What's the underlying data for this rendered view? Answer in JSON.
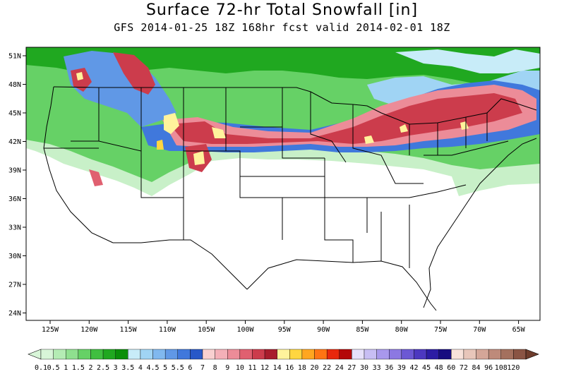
{
  "title": "Surface 72-hr Total Snowfall [in]",
  "subtitle": "GFS 2014-01-25 18Z 168hr fcst valid 2014-02-01 18Z",
  "lat_labels": [
    "51N",
    "48N",
    "45N",
    "42N",
    "39N",
    "36N",
    "33N",
    "30N",
    "27N",
    "24N"
  ],
  "lon_labels": [
    "125W",
    "120W",
    "115W",
    "110W",
    "105W",
    "100W",
    "95W",
    "90W",
    "85W",
    "80W",
    "75W",
    "70W",
    "65W"
  ],
  "colorbar": {
    "labels": [
      "0.1",
      "0.5",
      "1",
      "1.5",
      "2",
      "2.5",
      "3",
      "3.5",
      "4",
      "4.5",
      "5",
      "5.5",
      "6",
      "7",
      "8",
      "9",
      "10",
      "11",
      "12",
      "14",
      "16",
      "18",
      "20",
      "22",
      "24",
      "27",
      "30",
      "33",
      "36",
      "39",
      "42",
      "45",
      "48",
      "60",
      "72",
      "84",
      "96",
      "108",
      "120"
    ],
    "colors": [
      "#d8f5d8",
      "#b4ecb4",
      "#8fe08f",
      "#66d166",
      "#40bf40",
      "#20a820",
      "#0a8f0a",
      "#c8ecf8",
      "#a0d4f4",
      "#80b8ef",
      "#6098e6",
      "#4078dc",
      "#2858c8",
      "#f8d0d0",
      "#f4b0b8",
      "#ec8c98",
      "#e06070",
      "#cc3c4c",
      "#a81c2c",
      "#fff39c",
      "#ffd640",
      "#ffa620",
      "#ff7414",
      "#e8280c",
      "#b40808",
      "#e6e0fa",
      "#c8bef4",
      "#a898ec",
      "#8c78e2",
      "#6c58d4",
      "#4c38c0",
      "#2c1ca4",
      "#180c80",
      "#f8e2da",
      "#e8c6ba",
      "#d4a698",
      "#be8a7a",
      "#a4705e",
      "#8a5444"
    ]
  },
  "colors": {
    "snow_green_light": "#c8f0c8",
    "snow_green": "#40bf40",
    "snow_blue": "#4078dc",
    "snow_pink": "#ec8c98",
    "snow_red": "#cc3c4c",
    "snow_yellow": "#fff39c",
    "map_lines": "#000000"
  }
}
